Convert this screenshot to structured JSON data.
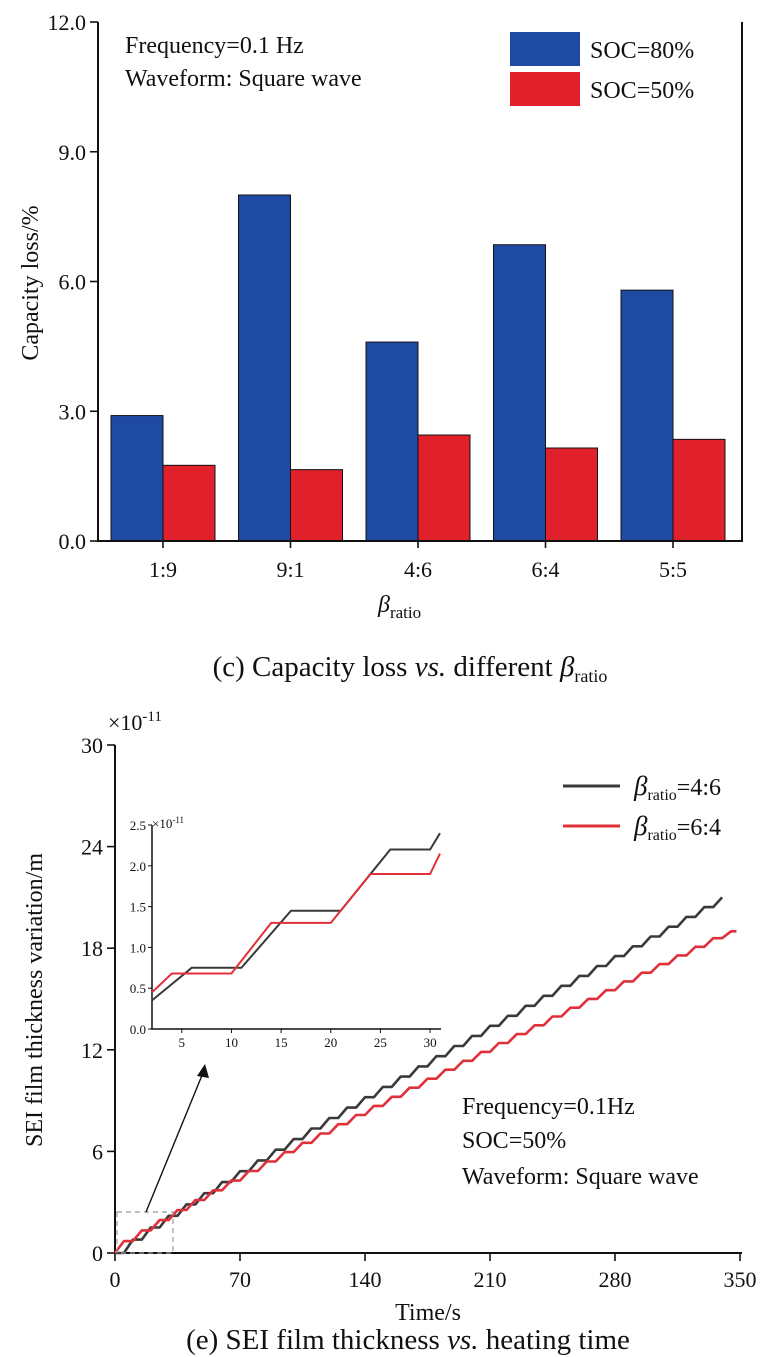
{
  "chart_data": [
    {
      "type": "bar",
      "categories": [
        "1:9",
        "9:1",
        "4:6",
        "6:4",
        "5:5"
      ],
      "series": [
        {
          "name": "SOC=80%",
          "color": "#1f4aa3",
          "values": [
            2.9,
            8.0,
            4.6,
            6.85,
            5.8
          ]
        },
        {
          "name": "SOC=50%",
          "color": "#e0202a",
          "values": [
            1.75,
            1.65,
            2.45,
            2.15,
            2.35
          ]
        }
      ],
      "ylim": [
        0,
        12
      ],
      "yticks": [
        "0.0",
        "3.0",
        "6.0",
        "9.0",
        "12.0"
      ],
      "ylabel": "Capacity loss/%",
      "xlabel_main": "β",
      "xlabel_sub": "ratio",
      "annotations": [
        "Frequency=0.1 Hz",
        "Waveform: Square wave"
      ],
      "legend_position": "top-right",
      "caption": {
        "prefix": "(c) Capacity loss ",
        "italic": "vs.",
        "suffix": " different ",
        "beta": "β",
        "sub": "ratio"
      }
    },
    {
      "type": "line",
      "xlim": [
        0,
        350
      ],
      "ylim": [
        0,
        30
      ],
      "xticks": [
        "0",
        "70",
        "140",
        "210",
        "280",
        "350"
      ],
      "yticks": [
        "0",
        "6",
        "12",
        "18",
        "24",
        "30"
      ],
      "y_multiplier": "×10",
      "y_multiplier_exp": "-11",
      "xlabel": "Time/s",
      "ylabel": "SEI film thickness variation/m",
      "series": [
        {
          "name_main": "β",
          "name_sub": "ratio",
          "name_suffix": "=4:6",
          "color": "#3a3a3a",
          "x_end": 340,
          "y_end": 21.0
        },
        {
          "name_main": "β",
          "name_sub": "ratio",
          "name_suffix": "=6:4",
          "color": "#e0303a",
          "x_end": 348,
          "y_end": 19.0
        }
      ],
      "annotations": [
        "Frequency=0.1Hz",
        "SOC=50%",
        "Waveform: Square wave"
      ],
      "legend_position": "top-right",
      "inset": {
        "xlim": [
          2,
          31
        ],
        "ylim": [
          0,
          2.5
        ],
        "xticks": [
          "5",
          "10",
          "15",
          "20",
          "25",
          "30"
        ],
        "yticks": [
          "0.0",
          "0.5",
          "1.0",
          "1.5",
          "2.0",
          "2.5"
        ],
        "y_multiplier": "×10",
        "y_multiplier_exp": "-11",
        "series_46": [
          [
            2,
            0.35
          ],
          [
            6,
            0.75
          ],
          [
            11,
            0.75
          ],
          [
            16,
            1.45
          ],
          [
            21,
            1.45
          ],
          [
            26,
            2.2
          ],
          [
            30,
            2.2
          ],
          [
            31,
            2.4
          ]
        ],
        "series_64": [
          [
            2,
            0.45
          ],
          [
            4,
            0.68
          ],
          [
            10,
            0.68
          ],
          [
            14,
            1.3
          ],
          [
            20,
            1.3
          ],
          [
            24,
            1.9
          ],
          [
            30,
            1.9
          ],
          [
            31,
            2.15
          ]
        ]
      },
      "caption": {
        "prefix": "(e) SEI film thickness ",
        "italic": "vs.",
        "suffix": " heating time"
      }
    }
  ]
}
